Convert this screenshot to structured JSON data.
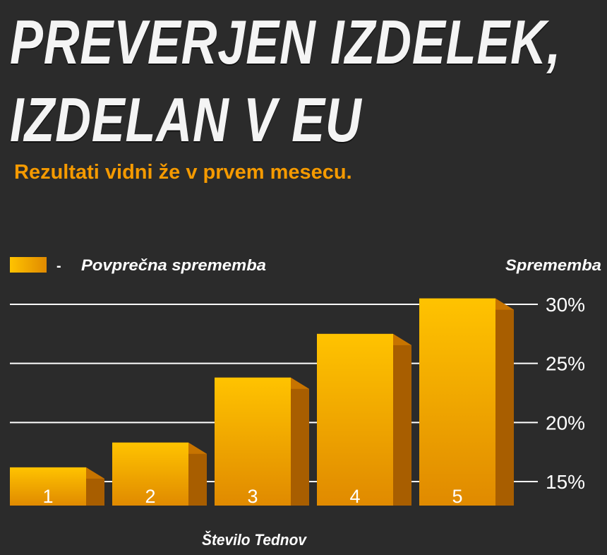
{
  "header": {
    "title_line1": "PREVERJEN IZDELEK,",
    "title_line2": "IZDELAN V EU",
    "subtitle": "Rezultati vidni že v prvem mesecu."
  },
  "chart_data": {
    "type": "bar",
    "categories": [
      "1",
      "2",
      "3",
      "4",
      "5"
    ],
    "series": [
      {
        "name": "Povprečna sprememba",
        "values": [
          16.2,
          18.3,
          23.8,
          27.5,
          30.5
        ]
      }
    ],
    "xlabel": "Število Tednov",
    "ylabel": "Sprememba",
    "legend_dash": "-",
    "ylim": [
      15,
      30
    ],
    "yticks": [
      15,
      20,
      25,
      30
    ],
    "ytick_labels": [
      "15%",
      "20%",
      "25%",
      "30%"
    ],
    "grid": true,
    "legend_position": "top-left",
    "colors": {
      "bar_front_top": "#ffc300",
      "bar_front_bottom": "#e08a00",
      "bar_side": "#a85e00",
      "bar_top": "#c77400",
      "grid": "#ffffff",
      "text": "#ffffff",
      "accent": "#f59a00"
    }
  }
}
